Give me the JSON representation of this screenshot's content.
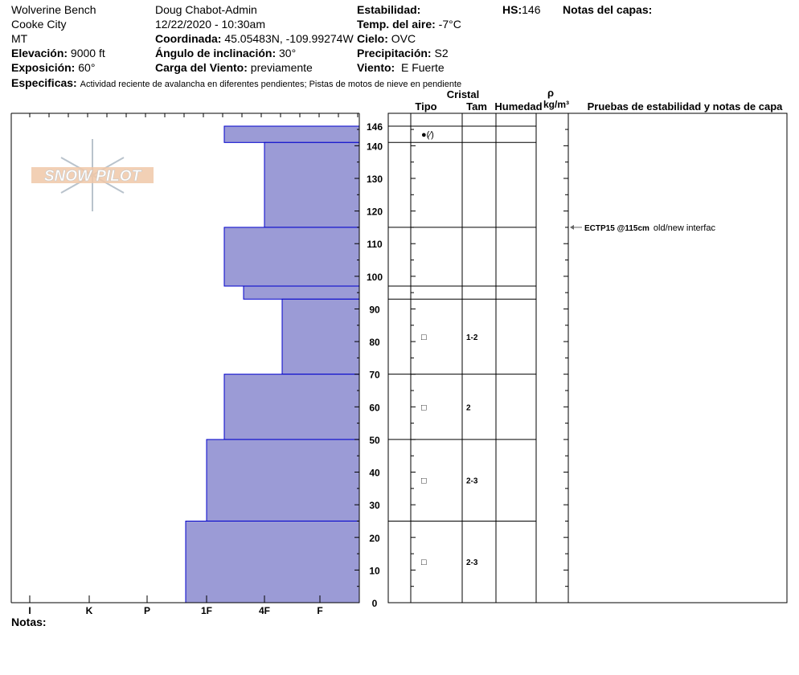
{
  "header": {
    "location": "Wolverine Bench",
    "city": "Cooke City",
    "state": "MT",
    "elevation_label": "Elevación:",
    "elevation": "9000 ft",
    "aspect_label": "Exposición:",
    "aspect": "60°",
    "observer": "Doug Chabot-Admin",
    "datetime": "12/22/2020 - 10:30am",
    "coord_label": "Coordinada:",
    "coord": "45.05483N, -109.99274W",
    "slope_label": "Ángulo de inclinación:",
    "slope": "30°",
    "wind_load_label": "Carga del Viento:",
    "wind_load": "previamente",
    "stability_label": "Estabilidad:",
    "stability": "",
    "air_temp_label": "Temp. del aire:",
    "air_temp": "-7°C",
    "sky_label": "Cielo:",
    "sky": "OVC",
    "precip_label": "Precipitación:",
    "precip": "S2",
    "wind_label": "Viento:",
    "wind": "E Fuerte",
    "hs_label": "HS:",
    "hs": "146",
    "layer_notes_label": "Notas del capas:",
    "specifics_label": "Especificas:",
    "specifics": "Actividad reciente de avalancha en diferentes pendientes;  Pistas de motos de nieve en pendiente",
    "notes_label": "Notas:"
  },
  "columns": {
    "crystal": "Cristal",
    "type": "Tipo",
    "size": "Tam",
    "moisture": "Humedad",
    "rho": "ρ",
    "density_unit": "kg/m³",
    "tests": "Pruebas de estabilidad y notas de capa"
  },
  "logo_text": "SNOW PILOT",
  "chart_data": {
    "type": "bar",
    "orientation": "horizontal-step",
    "ylim": [
      0,
      146
    ],
    "yticks": [
      0,
      10,
      20,
      30,
      40,
      50,
      60,
      70,
      80,
      90,
      100,
      110,
      120,
      130,
      140,
      146
    ],
    "xticks": [
      "I",
      "K",
      "P",
      "1F",
      "4F",
      "F"
    ],
    "fill_color": "#9b9bd6",
    "edge_color": "#0000cc",
    "layers": [
      {
        "top": 146,
        "bottom": 141,
        "hardness": "1F+",
        "grain": "●(⁄)",
        "size": ""
      },
      {
        "top": 141,
        "bottom": 115,
        "hardness": "4F",
        "grain": "",
        "size": ""
      },
      {
        "top": 115,
        "bottom": 97,
        "hardness": "1F+",
        "grain": "",
        "size": ""
      },
      {
        "top": 97,
        "bottom": 93,
        "hardness": "4F-",
        "grain": "",
        "size": ""
      },
      {
        "top": 93,
        "bottom": 70,
        "hardness": "4F+",
        "grain": "□",
        "size": "1-2"
      },
      {
        "top": 70,
        "bottom": 50,
        "hardness": "1F+",
        "grain": "□",
        "size": "2"
      },
      {
        "top": 50,
        "bottom": 25,
        "hardness": "1F",
        "grain": "□",
        "size": "2-3"
      },
      {
        "top": 25,
        "bottom": 0,
        "hardness": "1F-",
        "grain": "□",
        "size": "2-3"
      }
    ],
    "tests": [
      {
        "depth": 115,
        "result": "ECTP15 @115cm",
        "note": "old/new interfac"
      }
    ]
  }
}
